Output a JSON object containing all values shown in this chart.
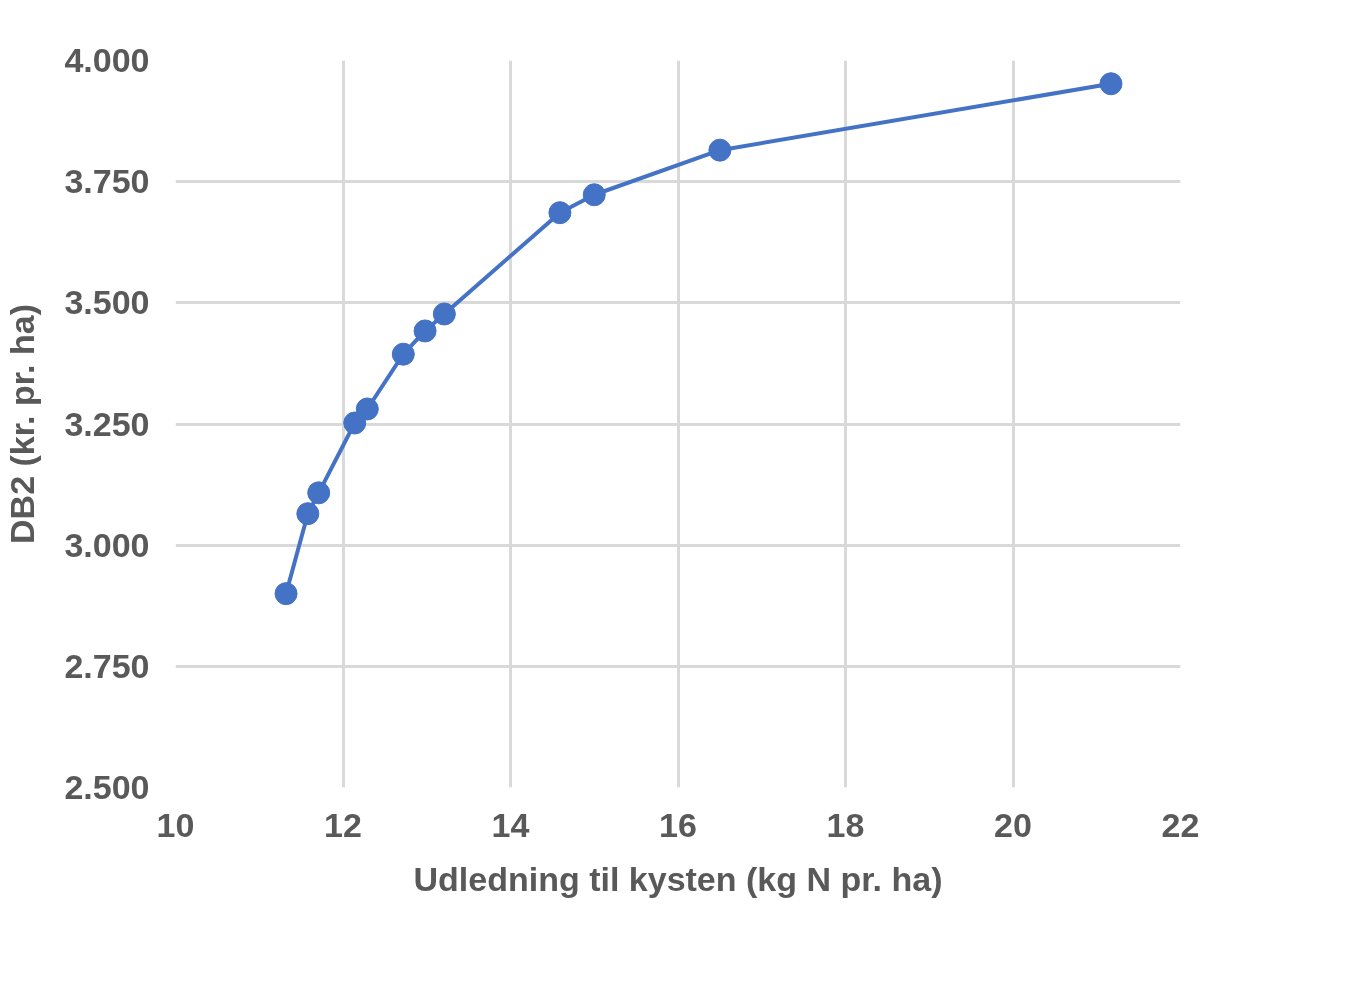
{
  "chart_data": {
    "type": "line",
    "xlabel": "Udledning til kysten (kg N pr. ha)",
    "ylabel": "DB2 (kr. pr. ha)",
    "x": [
      11.32,
      11.58,
      11.71,
      12.14,
      12.29,
      12.72,
      12.98,
      13.21,
      14.59,
      15.0,
      16.5,
      21.17
    ],
    "series": [
      {
        "color": "#4472c4",
        "values": [
          2900,
          3065,
          3108,
          3252,
          3281,
          3394,
          3442,
          3477,
          3686,
          3723,
          3815,
          3952
        ]
      }
    ],
    "xlim": [
      10,
      22
    ],
    "xticks": [
      10,
      12,
      14,
      16,
      18,
      20,
      22
    ],
    "ylim": [
      2500,
      4000
    ],
    "yticks": [
      {
        "value": 2500,
        "label": "2.500"
      },
      {
        "value": 2750,
        "label": "2.750"
      },
      {
        "value": 3000,
        "label": "3.000"
      },
      {
        "value": 3250,
        "label": "3.250"
      },
      {
        "value": 3500,
        "label": "3.500"
      },
      {
        "value": 3750,
        "label": "3.750"
      },
      {
        "value": 4000,
        "label": "4.000"
      }
    ],
    "grid": true,
    "marker": "circle",
    "line_style": "solid"
  }
}
